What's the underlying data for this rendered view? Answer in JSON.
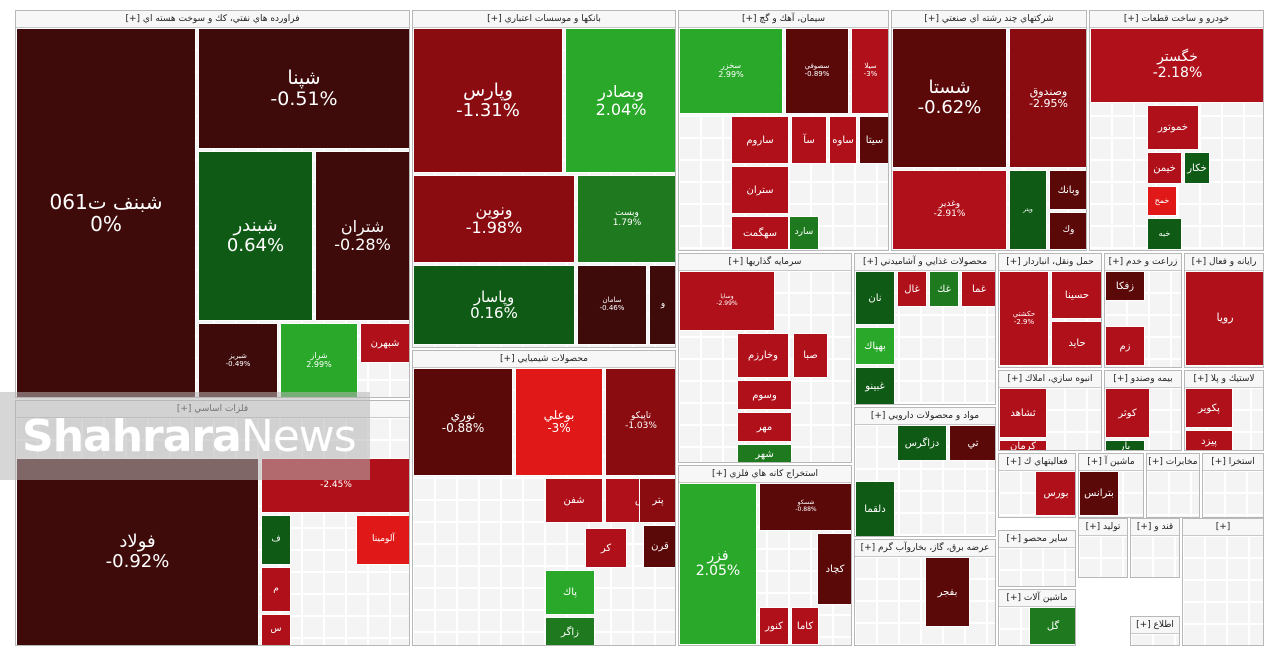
{
  "colors": {
    "neg3": "#b0101a",
    "neg2": "#8a0b10",
    "neg1": "#5a0808",
    "neg0": "#3e0a0a",
    "zero": "#3e0a0a",
    "pos1": "#0f5a15",
    "pos2": "#1f7a1f",
    "pos3": "#2aa82a",
    "bright_pos": "#33b833",
    "bright_neg": "#e01818"
  },
  "sectors": [
    {
      "title": "فراورده هاي نفتي، كك و سوخت هسته اي [+]",
      "tiles": [
        {
          "symbol": "شبنف ت061",
          "change": "0%",
          "tone": "zero"
        },
        {
          "symbol": "شپنا",
          "change": "-0.51%",
          "tone": "neg0"
        },
        {
          "symbol": "شبندر",
          "change": "0.64%",
          "tone": "pos1"
        },
        {
          "symbol": "شتران",
          "change": "-0.28%",
          "tone": "neg0"
        },
        {
          "symbol": "شبريز",
          "change": "-0.49%",
          "tone": "neg0"
        },
        {
          "symbol": "شراز",
          "change": "2.99%",
          "tone": "pos3"
        },
        {
          "symbol": "شبهرن",
          "change": "",
          "tone": "neg3"
        }
      ]
    },
    {
      "title": "بانكها و موسسات اعتباري [+]",
      "tiles": [
        {
          "symbol": "وپارس",
          "change": "-1.31%",
          "tone": "neg2"
        },
        {
          "symbol": "وبصادر",
          "change": "2.04%",
          "tone": "pos3"
        },
        {
          "symbol": "ونوين",
          "change": "-1.98%",
          "tone": "neg2"
        },
        {
          "symbol": "وبست",
          "change": "1.79%",
          "tone": "pos2"
        },
        {
          "symbol": "وپاسار",
          "change": "0.16%",
          "tone": "pos1"
        },
        {
          "symbol": "سامان",
          "change": "-0.46%",
          "tone": "neg0"
        },
        {
          "symbol": "و",
          "change": "",
          "tone": "neg0"
        }
      ]
    },
    {
      "title": "سيمان، آهك و گچ [+]",
      "tiles": [
        {
          "symbol": "سخزر",
          "change": "2.99%",
          "tone": "pos3"
        },
        {
          "symbol": "سصوفي",
          "change": "-0.89%",
          "tone": "neg1"
        },
        {
          "symbol": "سيلا",
          "change": "-3%",
          "tone": "neg3"
        },
        {
          "symbol": "ساروم",
          "change": "",
          "tone": "neg3"
        },
        {
          "symbol": "سآ",
          "change": "",
          "tone": "neg3"
        },
        {
          "symbol": "ساوه",
          "change": "",
          "tone": "neg3"
        },
        {
          "symbol": "سيتا",
          "change": "",
          "tone": "neg1"
        },
        {
          "symbol": "ستران",
          "change": "",
          "tone": "neg3"
        },
        {
          "symbol": "سهگمت",
          "change": "",
          "tone": "neg3"
        },
        {
          "symbol": "سارد",
          "change": "",
          "tone": "pos2"
        }
      ]
    },
    {
      "title": "شركتهاي چند رشته اي صنعتي [+]",
      "tiles": [
        {
          "symbol": "شستا",
          "change": "-0.62%",
          "tone": "neg1"
        },
        {
          "symbol": "وصندوق",
          "change": "-2.95%",
          "tone": "neg2"
        },
        {
          "symbol": "وغدير",
          "change": "-2.91%",
          "tone": "neg3"
        },
        {
          "symbol": "وبانك",
          "change": "",
          "tone": "neg1"
        },
        {
          "symbol": "وپتر",
          "change": "",
          "tone": "pos1"
        },
        {
          "symbol": "وك",
          "change": "",
          "tone": "neg1"
        }
      ]
    },
    {
      "title": "خودرو و ساخت قطعات [+]",
      "tiles": [
        {
          "symbol": "خگستر",
          "change": "-2.18%",
          "tone": "neg3"
        },
        {
          "symbol": "خموتور",
          "change": "",
          "tone": "neg3"
        },
        {
          "symbol": "خكار",
          "change": "",
          "tone": "pos1"
        },
        {
          "symbol": "خيمن",
          "change": "",
          "tone": "neg3"
        },
        {
          "symbol": "خمح",
          "change": "",
          "tone": "bright_neg"
        },
        {
          "symbol": "خبه",
          "change": "",
          "tone": "pos1"
        }
      ]
    },
    {
      "title": "فلزات اساسي [+]",
      "tiles": [
        {
          "symbol": "فولاد",
          "change": "-0.92%",
          "tone": "neg0"
        },
        {
          "symbol": "",
          "change": "-2.45%",
          "tone": "neg3"
        },
        {
          "symbol": "آلومينا",
          "change": "",
          "tone": "bright_neg"
        },
        {
          "symbol": "ف",
          "change": "",
          "tone": "pos1"
        },
        {
          "symbol": "م",
          "change": "",
          "tone": "neg3"
        },
        {
          "symbol": "س",
          "change": "",
          "tone": "neg3"
        }
      ]
    },
    {
      "title": "محصولات شيميايي [+]",
      "tiles": [
        {
          "symbol": "نوري",
          "change": "-0.88%",
          "tone": "neg1"
        },
        {
          "symbol": "بوعلي",
          "change": "-3%",
          "tone": "bright_neg"
        },
        {
          "symbol": "تاپيكو",
          "change": "-1.03%",
          "tone": "neg2"
        },
        {
          "symbol": "ش",
          "change": "",
          "tone": "neg3"
        },
        {
          "symbol": "پتر",
          "change": "",
          "tone": "neg2"
        },
        {
          "symbol": "شفن",
          "change": "",
          "tone": "neg3"
        },
        {
          "symbol": "كر",
          "change": "",
          "tone": "neg3"
        },
        {
          "symbol": "قرن",
          "change": "",
          "tone": "neg1"
        },
        {
          "symbol": "پاك",
          "change": "",
          "tone": "pos3"
        },
        {
          "symbol": "زاگر",
          "change": "",
          "tone": "pos2"
        }
      ]
    },
    {
      "title": "سرمايه گذاريها [+]",
      "tiles": [
        {
          "symbol": "وسايا",
          "change": "-2.99%",
          "tone": "neg3"
        },
        {
          "symbol": "وخارزم",
          "change": "",
          "tone": "neg3"
        },
        {
          "symbol": "صبا",
          "change": "",
          "tone": "neg3"
        },
        {
          "symbol": "وسوم",
          "change": "",
          "tone": "neg3"
        },
        {
          "symbol": "مهر",
          "change": "",
          "tone": "neg3"
        },
        {
          "symbol": "شهر",
          "change": "",
          "tone": "pos2"
        }
      ]
    },
    {
      "title": "استخراج كانه هاي فلزي [+]",
      "tiles": [
        {
          "symbol": "فزر",
          "change": "2.05%",
          "tone": "pos3"
        },
        {
          "symbol": "شسكو",
          "change": "-0.88%",
          "tone": "neg1"
        },
        {
          "symbol": "كچاد",
          "change": "",
          "tone": "neg1"
        },
        {
          "symbol": "كنور",
          "change": "",
          "tone": "neg3"
        },
        {
          "symbol": "كاما",
          "change": "",
          "tone": "neg3"
        }
      ]
    },
    {
      "title": "محصولات غذايي و آشاميدني [+]",
      "tiles": [
        {
          "symbol": "نان",
          "change": "",
          "tone": "pos1"
        },
        {
          "symbol": "بهپاك",
          "change": "",
          "tone": "pos3"
        },
        {
          "symbol": "غبينو",
          "change": "",
          "tone": "pos1"
        },
        {
          "symbol": "غال",
          "change": "",
          "tone": "neg3"
        },
        {
          "symbol": "غك",
          "change": "",
          "tone": "pos2"
        },
        {
          "symbol": "غما",
          "change": "",
          "tone": "neg3"
        }
      ]
    },
    {
      "title": "مواد و محصولات دارويي [+]",
      "tiles": [
        {
          "symbol": "دزاگرس",
          "change": "",
          "tone": "pos1"
        },
        {
          "symbol": "دلقما",
          "change": "",
          "tone": "pos1"
        },
        {
          "symbol": "تي",
          "change": "",
          "tone": "neg1"
        }
      ]
    },
    {
      "title": "عرضه برق، گاز، بخاروآب گرم [+]",
      "tiles": [
        {
          "symbol": "بفجر",
          "change": "",
          "tone": "neg1"
        }
      ]
    },
    {
      "title": "حمل ونقل، انباردار [+]",
      "tiles": [
        {
          "symbol": "حسينا",
          "change": "",
          "tone": "neg3"
        },
        {
          "symbol": "حايد",
          "change": "",
          "tone": "neg3"
        },
        {
          "symbol": "حكشتي",
          "change": "-2.9%",
          "tone": "neg3"
        }
      ]
    },
    {
      "title": "زراعت و خدم [+]",
      "tiles": [
        {
          "symbol": "زفكا",
          "change": "",
          "tone": "neg1"
        },
        {
          "symbol": "زم",
          "change": "",
          "tone": "neg3"
        }
      ]
    },
    {
      "title": "رايانه و فعال [+]",
      "tiles": [
        {
          "symbol": "رويا",
          "change": "",
          "tone": "neg3"
        }
      ]
    },
    {
      "title": "انبوه سازي، املاك [+]",
      "tiles": [
        {
          "symbol": "ثشاهد",
          "change": "",
          "tone": "neg3"
        },
        {
          "symbol": "كرمان",
          "change": "",
          "tone": "neg3"
        }
      ]
    },
    {
      "title": "بيمه وصندو [+]",
      "tiles": [
        {
          "symbol": "كوثر",
          "change": "",
          "tone": "neg3"
        },
        {
          "symbol": "بار",
          "change": "",
          "tone": "pos1"
        }
      ]
    },
    {
      "title": "لاستيك و پلا [+]",
      "tiles": [
        {
          "symbol": "پكوير",
          "change": "",
          "tone": "neg3"
        },
        {
          "symbol": "پيزد",
          "change": "",
          "tone": "neg3"
        }
      ]
    },
    {
      "title": "فعاليتهاي ك [+]",
      "tiles": [
        {
          "symbol": "بورس",
          "change": "",
          "tone": "neg3"
        }
      ]
    },
    {
      "title": "ماشين آ [+]",
      "tiles": [
        {
          "symbol": "بترانس",
          "change": "",
          "tone": "neg1"
        }
      ]
    },
    {
      "title": "مخابرات [+]",
      "tiles": []
    },
    {
      "title": "استخرا [+]",
      "tiles": []
    },
    {
      "title": "ساير محصو [+]",
      "tiles": []
    },
    {
      "title": "ماشين آلات [+]",
      "tiles": [
        {
          "symbol": "گل",
          "change": "",
          "tone": "pos2"
        }
      ]
    },
    {
      "title": "توليد [+]",
      "tiles": []
    },
    {
      "title": "قند و [+]",
      "tiles": []
    },
    {
      "title": "اطلاع [+]",
      "tiles": []
    },
    {
      "title": "[+]",
      "tiles": []
    }
  ],
  "watermark": {
    "brand_bold": "Shahrara",
    "brand_light": "News"
  }
}
